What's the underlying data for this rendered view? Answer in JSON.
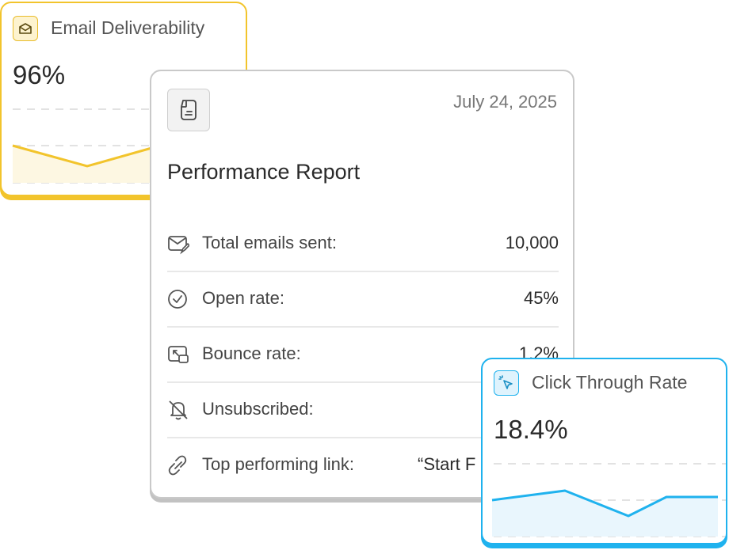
{
  "deliverability": {
    "title": "Email Deliverability",
    "value": "96%",
    "icon": "envelope-open-icon",
    "accent": "#f2c42c"
  },
  "report": {
    "date": "July 24, 2025",
    "title": "Performance Report",
    "icon": "document-icon",
    "rows": [
      {
        "label": "Total emails sent:",
        "value": "10,000",
        "icon": "mail-edit-icon"
      },
      {
        "label": "Open rate:",
        "value": "45%",
        "icon": "check-circle-icon"
      },
      {
        "label": "Bounce rate:",
        "value": "1.2%",
        "icon": "bounce-icon"
      },
      {
        "label": "Unsubscribed:",
        "value": "",
        "icon": "bell-off-icon"
      },
      {
        "label": "Top performing link:",
        "value": "“Start F",
        "icon": "link-icon"
      }
    ]
  },
  "ctr": {
    "title": "Click Through Rate",
    "value": "18.4%",
    "icon": "cursor-click-icon",
    "accent": "#1fb2ee"
  }
}
